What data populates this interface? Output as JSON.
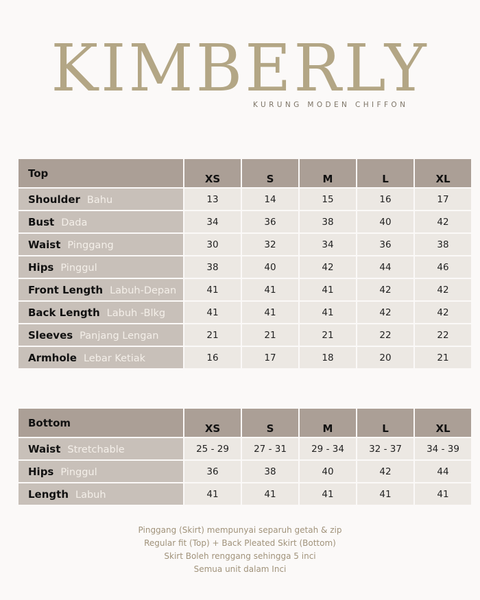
{
  "brand": {
    "title": "KIMBERLY",
    "subtitle": "KURUNG MODEN CHIFFON"
  },
  "sizes": [
    "XS",
    "S",
    "M",
    "L",
    "XL"
  ],
  "top": {
    "header": "Top",
    "rows": [
      {
        "en": "Shoulder",
        "my": "Bahu",
        "values": [
          "13",
          "14",
          "15",
          "16",
          "17"
        ]
      },
      {
        "en": "Bust",
        "my": "Dada",
        "values": [
          "34",
          "36",
          "38",
          "40",
          "42"
        ]
      },
      {
        "en": "Waist",
        "my": "Pinggang",
        "values": [
          "30",
          "32",
          "34",
          "36",
          "38"
        ]
      },
      {
        "en": "Hips",
        "my": "Pinggul",
        "values": [
          "38",
          "40",
          "42",
          "44",
          "46"
        ]
      },
      {
        "en": "Front Length",
        "my": "Labuh-Depan",
        "values": [
          "41",
          "41",
          "41",
          "42",
          "42"
        ]
      },
      {
        "en": "Back Length",
        "my": "Labuh -Blkg",
        "values": [
          "41",
          "41",
          "41",
          "42",
          "42"
        ]
      },
      {
        "en": "Sleeves",
        "my": "Panjang Lengan",
        "values": [
          "21",
          "21",
          "21",
          "22",
          "22"
        ]
      },
      {
        "en": "Armhole",
        "my": "Lebar Ketiak",
        "values": [
          "16",
          "17",
          "18",
          "20",
          "21"
        ]
      }
    ]
  },
  "bottom": {
    "header": "Bottom",
    "rows": [
      {
        "en": "Waist",
        "my": "Stretchable",
        "values": [
          "25 - 29",
          "27 - 31",
          "29 - 34",
          "32 - 37",
          "34 - 39"
        ]
      },
      {
        "en": "Hips",
        "my": "Pinggul",
        "values": [
          "36",
          "38",
          "40",
          "42",
          "44"
        ]
      },
      {
        "en": "Length",
        "my": "Labuh",
        "values": [
          "41",
          "41",
          "41",
          "41",
          "41"
        ]
      }
    ]
  },
  "notes": [
    "Pinggang (Skirt) mempunyai separuh getah & zip",
    "Regular fit (Top) + Back Pleated Skirt (Bottom)",
    "Skirt Boleh renggang sehingga 5 inci",
    "Semua unit dalam Inci"
  ]
}
